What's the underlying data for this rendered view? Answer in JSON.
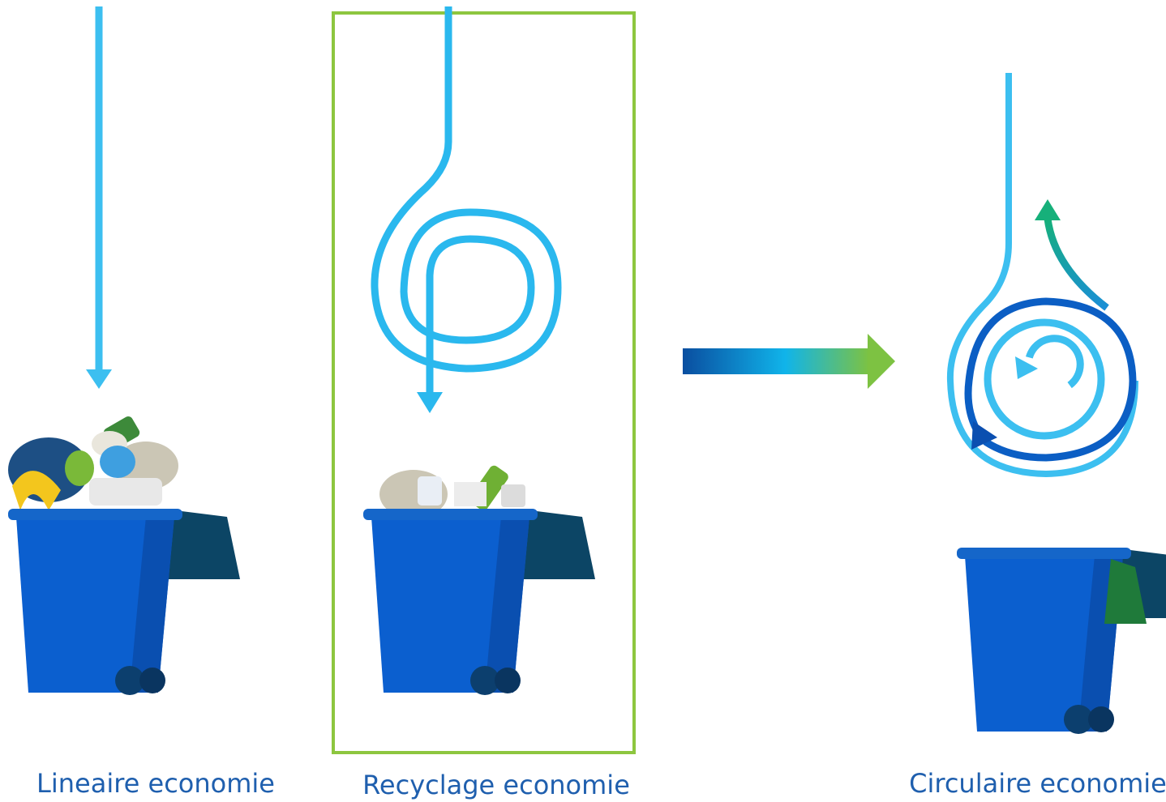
{
  "labels": [
    "Lineaire economie",
    "Recyclage economie",
    "Circulaire economie"
  ]
}
